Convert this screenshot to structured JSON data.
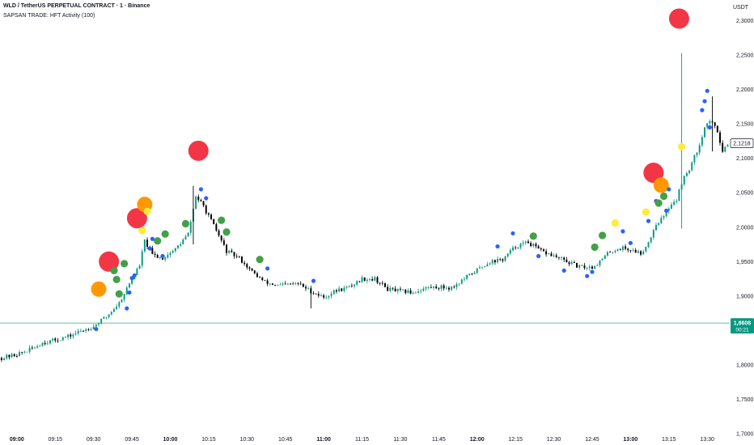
{
  "header": {
    "title": "WLD / TetherUS PERPETUAL CONTRACT · 1 · Binance",
    "indicator": "SAPSAN TRADE: HFT Activity (100)"
  },
  "axis": {
    "currency": "USDT"
  },
  "price_tags": {
    "last": "2,1218",
    "mark": "1,8608",
    "countdown": "00:21"
  },
  "colors": {
    "bull": "#089981",
    "bear": "#000000",
    "red": "#f23645",
    "orange": "#ff9800",
    "yellow": "#ffeb3b",
    "green": "#43a047",
    "blue": "#2962ff",
    "markline": "#089981"
  },
  "chart_data": {
    "type": "candlestick",
    "ylim": [
      1.7,
      2.33
    ],
    "x_range": [
      "08:54",
      "13:38"
    ],
    "yticks": [
      "2,3000",
      "2,2500",
      "2,2000",
      "2,1500",
      "2,1000",
      "2,0500",
      "2,0000",
      "1,9500",
      "1,9000",
      "1,8500",
      "1,8000",
      "1,7500",
      "1,7000"
    ],
    "xticks": [
      {
        "label": "09:00",
        "t": "09:00",
        "bold": true
      },
      {
        "label": "09:15",
        "t": "09:15",
        "bold": false
      },
      {
        "label": "09:30",
        "t": "09:30",
        "bold": false
      },
      {
        "label": "09:45",
        "t": "09:45",
        "bold": false
      },
      {
        "label": "10:00",
        "t": "10:00",
        "bold": true
      },
      {
        "label": "10:15",
        "t": "10:15",
        "bold": false
      },
      {
        "label": "10:30",
        "t": "10:30",
        "bold": false
      },
      {
        "label": "10:45",
        "t": "10:45",
        "bold": false
      },
      {
        "label": "11:00",
        "t": "11:00",
        "bold": true
      },
      {
        "label": "11:15",
        "t": "11:15",
        "bold": false
      },
      {
        "label": "11:30",
        "t": "11:30",
        "bold": false
      },
      {
        "label": "11:45",
        "t": "11:45",
        "bold": false
      },
      {
        "label": "12:00",
        "t": "12:00",
        "bold": true
      },
      {
        "label": "12:15",
        "t": "12:15",
        "bold": false
      },
      {
        "label": "12:30",
        "t": "12:30",
        "bold": false
      },
      {
        "label": "12:45",
        "t": "12:45",
        "bold": false
      },
      {
        "label": "13:00",
        "t": "13:00",
        "bold": true
      },
      {
        "label": "13:15",
        "t": "13:15",
        "bold": false
      },
      {
        "label": "13:30",
        "t": "13:30",
        "bold": false
      }
    ],
    "last_price": 2.1218,
    "mark_price": 1.8608,
    "price_path": [
      [
        "08:54",
        1.81
      ],
      [
        "09:00",
        1.815
      ],
      [
        "09:05",
        1.822
      ],
      [
        "09:10",
        1.832
      ],
      [
        "09:15",
        1.836
      ],
      [
        "09:20",
        1.841
      ],
      [
        "09:25",
        1.849
      ],
      [
        "09:30",
        1.856
      ],
      [
        "09:35",
        1.87
      ],
      [
        "09:40",
        1.89
      ],
      [
        "09:45",
        1.925
      ],
      [
        "09:48",
        1.945
      ],
      [
        "09:50",
        1.98
      ],
      [
        "09:53",
        1.96
      ],
      [
        "09:57",
        1.955
      ],
      [
        "10:02",
        1.968
      ],
      [
        "10:07",
        1.99
      ],
      [
        "10:10",
        2.045
      ],
      [
        "10:13",
        2.03
      ],
      [
        "10:18",
        1.995
      ],
      [
        "10:22",
        1.965
      ],
      [
        "10:27",
        1.955
      ],
      [
        "10:32",
        1.935
      ],
      [
        "10:37",
        1.92
      ],
      [
        "10:42",
        1.915
      ],
      [
        "10:50",
        1.918
      ],
      [
        "10:55",
        1.907
      ],
      [
        "11:00",
        1.898
      ],
      [
        "11:05",
        1.908
      ],
      [
        "11:10",
        1.913
      ],
      [
        "11:15",
        1.925
      ],
      [
        "11:20",
        1.925
      ],
      [
        "11:25",
        1.91
      ],
      [
        "11:30",
        1.907
      ],
      [
        "11:35",
        1.905
      ],
      [
        "11:40",
        1.912
      ],
      [
        "11:45",
        1.913
      ],
      [
        "11:50",
        1.912
      ],
      [
        "11:55",
        1.925
      ],
      [
        "12:00",
        1.938
      ],
      [
        "12:05",
        1.95
      ],
      [
        "12:10",
        1.953
      ],
      [
        "12:15",
        1.972
      ],
      [
        "12:20",
        1.978
      ],
      [
        "12:25",
        1.965
      ],
      [
        "12:30",
        1.958
      ],
      [
        "12:35",
        1.95
      ],
      [
        "12:40",
        1.942
      ],
      [
        "12:45",
        1.942
      ],
      [
        "12:48",
        1.95
      ],
      [
        "12:52",
        1.965
      ],
      [
        "12:57",
        1.97
      ],
      [
        "13:02",
        1.965
      ],
      [
        "13:04",
        1.962
      ],
      [
        "13:07",
        1.978
      ],
      [
        "13:10",
        2.005
      ],
      [
        "13:13",
        2.015
      ],
      [
        "13:16",
        2.035
      ],
      [
        "13:18",
        2.04
      ],
      [
        "13:20",
        2.065
      ],
      [
        "13:23",
        2.085
      ],
      [
        "13:26",
        2.11
      ],
      [
        "13:29",
        2.145
      ],
      [
        "13:31",
        2.155
      ],
      [
        "13:34",
        2.14
      ],
      [
        "13:36",
        2.11
      ],
      [
        "13:38",
        2.122
      ]
    ],
    "wicks": [
      {
        "t": "10:09",
        "low": 1.975,
        "high": 2.06
      },
      {
        "t": "13:20",
        "low": 1.998,
        "high": 2.253
      },
      {
        "t": "10:55",
        "low": 1.882,
        "high": 1.912
      },
      {
        "t": "13:32",
        "low": 2.11,
        "high": 2.19
      }
    ],
    "markers": [
      {
        "t": "09:31",
        "price": 1.852,
        "size": "small",
        "color": "blue"
      },
      {
        "t": "09:32",
        "price": 1.91,
        "size": "large",
        "color": "orange"
      },
      {
        "t": "09:36",
        "price": 1.95,
        "size": "xlarge",
        "color": "red"
      },
      {
        "t": "09:38",
        "price": 1.937,
        "size": "medium",
        "color": "green"
      },
      {
        "t": "09:39",
        "price": 1.924,
        "size": "medium",
        "color": "green"
      },
      {
        "t": "09:40",
        "price": 1.903,
        "size": "medium",
        "color": "green"
      },
      {
        "t": "09:42",
        "price": 1.947,
        "size": "medium",
        "color": "green"
      },
      {
        "t": "09:43",
        "price": 1.882,
        "size": "small",
        "color": "blue"
      },
      {
        "t": "09:44",
        "price": 1.905,
        "size": "small",
        "color": "blue"
      },
      {
        "t": "09:45",
        "price": 1.926,
        "size": "small",
        "color": "blue"
      },
      {
        "t": "09:46",
        "price": 1.93,
        "size": "small",
        "color": "blue"
      },
      {
        "t": "09:47",
        "price": 2.013,
        "size": "xlarge",
        "color": "red"
      },
      {
        "t": "09:49",
        "price": 1.995,
        "size": "medium",
        "color": "yellow"
      },
      {
        "t": "09:50",
        "price": 2.033,
        "size": "large",
        "color": "orange"
      },
      {
        "t": "09:51",
        "price": 2.023,
        "size": "medium",
        "color": "yellow"
      },
      {
        "t": "09:52",
        "price": 1.969,
        "size": "small",
        "color": "blue"
      },
      {
        "t": "09:53",
        "price": 1.983,
        "size": "small",
        "color": "blue"
      },
      {
        "t": "09:55",
        "price": 1.98,
        "size": "medium",
        "color": "green"
      },
      {
        "t": "09:57",
        "price": 1.958,
        "size": "small",
        "color": "blue"
      },
      {
        "t": "09:58",
        "price": 1.99,
        "size": "medium",
        "color": "green"
      },
      {
        "t": "10:06",
        "price": 2.005,
        "size": "medium",
        "color": "green"
      },
      {
        "t": "10:11",
        "price": 2.111,
        "size": "xlarge",
        "color": "red"
      },
      {
        "t": "10:12",
        "price": 2.055,
        "size": "small",
        "color": "blue"
      },
      {
        "t": "10:14",
        "price": 2.042,
        "size": "small",
        "color": "blue"
      },
      {
        "t": "10:20",
        "price": 2.01,
        "size": "medium",
        "color": "green"
      },
      {
        "t": "10:22",
        "price": 1.993,
        "size": "medium",
        "color": "green"
      },
      {
        "t": "10:35",
        "price": 1.953,
        "size": "medium",
        "color": "green"
      },
      {
        "t": "10:38",
        "price": 1.94,
        "size": "small",
        "color": "blue"
      },
      {
        "t": "10:56",
        "price": 1.922,
        "size": "small",
        "color": "blue"
      },
      {
        "t": "12:08",
        "price": 1.972,
        "size": "small",
        "color": "blue"
      },
      {
        "t": "12:14",
        "price": 1.991,
        "size": "small",
        "color": "blue"
      },
      {
        "t": "12:22",
        "price": 1.987,
        "size": "medium",
        "color": "green"
      },
      {
        "t": "12:24",
        "price": 1.958,
        "size": "small",
        "color": "blue"
      },
      {
        "t": "12:34",
        "price": 1.937,
        "size": "small",
        "color": "blue"
      },
      {
        "t": "12:43",
        "price": 1.929,
        "size": "small",
        "color": "blue"
      },
      {
        "t": "12:45",
        "price": 1.935,
        "size": "small",
        "color": "blue"
      },
      {
        "t": "12:46",
        "price": 1.971,
        "size": "medium",
        "color": "green"
      },
      {
        "t": "12:49",
        "price": 1.988,
        "size": "medium",
        "color": "green"
      },
      {
        "t": "12:54",
        "price": 2.006,
        "size": "medium",
        "color": "yellow"
      },
      {
        "t": "12:57",
        "price": 1.994,
        "size": "small",
        "color": "blue"
      },
      {
        "t": "13:00",
        "price": 1.977,
        "size": "small",
        "color": "blue"
      },
      {
        "t": "13:06",
        "price": 2.022,
        "size": "medium",
        "color": "yellow"
      },
      {
        "t": "13:07",
        "price": 2.009,
        "size": "small",
        "color": "blue"
      },
      {
        "t": "13:09",
        "price": 2.079,
        "size": "xlarge",
        "color": "red"
      },
      {
        "t": "13:10",
        "price": 2.038,
        "size": "small",
        "color": "blue"
      },
      {
        "t": "13:11",
        "price": 2.035,
        "size": "medium",
        "color": "green"
      },
      {
        "t": "13:12",
        "price": 2.061,
        "size": "large",
        "color": "orange"
      },
      {
        "t": "13:13",
        "price": 2.045,
        "size": "medium",
        "color": "green"
      },
      {
        "t": "13:14",
        "price": 2.024,
        "size": "small",
        "color": "blue"
      },
      {
        "t": "13:15",
        "price": 2.055,
        "size": "small",
        "color": "blue"
      },
      {
        "t": "13:19",
        "price": 2.303,
        "size": "xlarge",
        "color": "red"
      },
      {
        "t": "13:20",
        "price": 2.117,
        "size": "medium",
        "color": "yellow"
      },
      {
        "t": "13:28",
        "price": 2.17,
        "size": "small",
        "color": "blue"
      },
      {
        "t": "13:29",
        "price": 2.183,
        "size": "small",
        "color": "blue"
      },
      {
        "t": "13:30",
        "price": 2.198,
        "size": "small",
        "color": "blue"
      },
      {
        "t": "13:31",
        "price": 2.145,
        "size": "small",
        "color": "blue"
      }
    ]
  }
}
